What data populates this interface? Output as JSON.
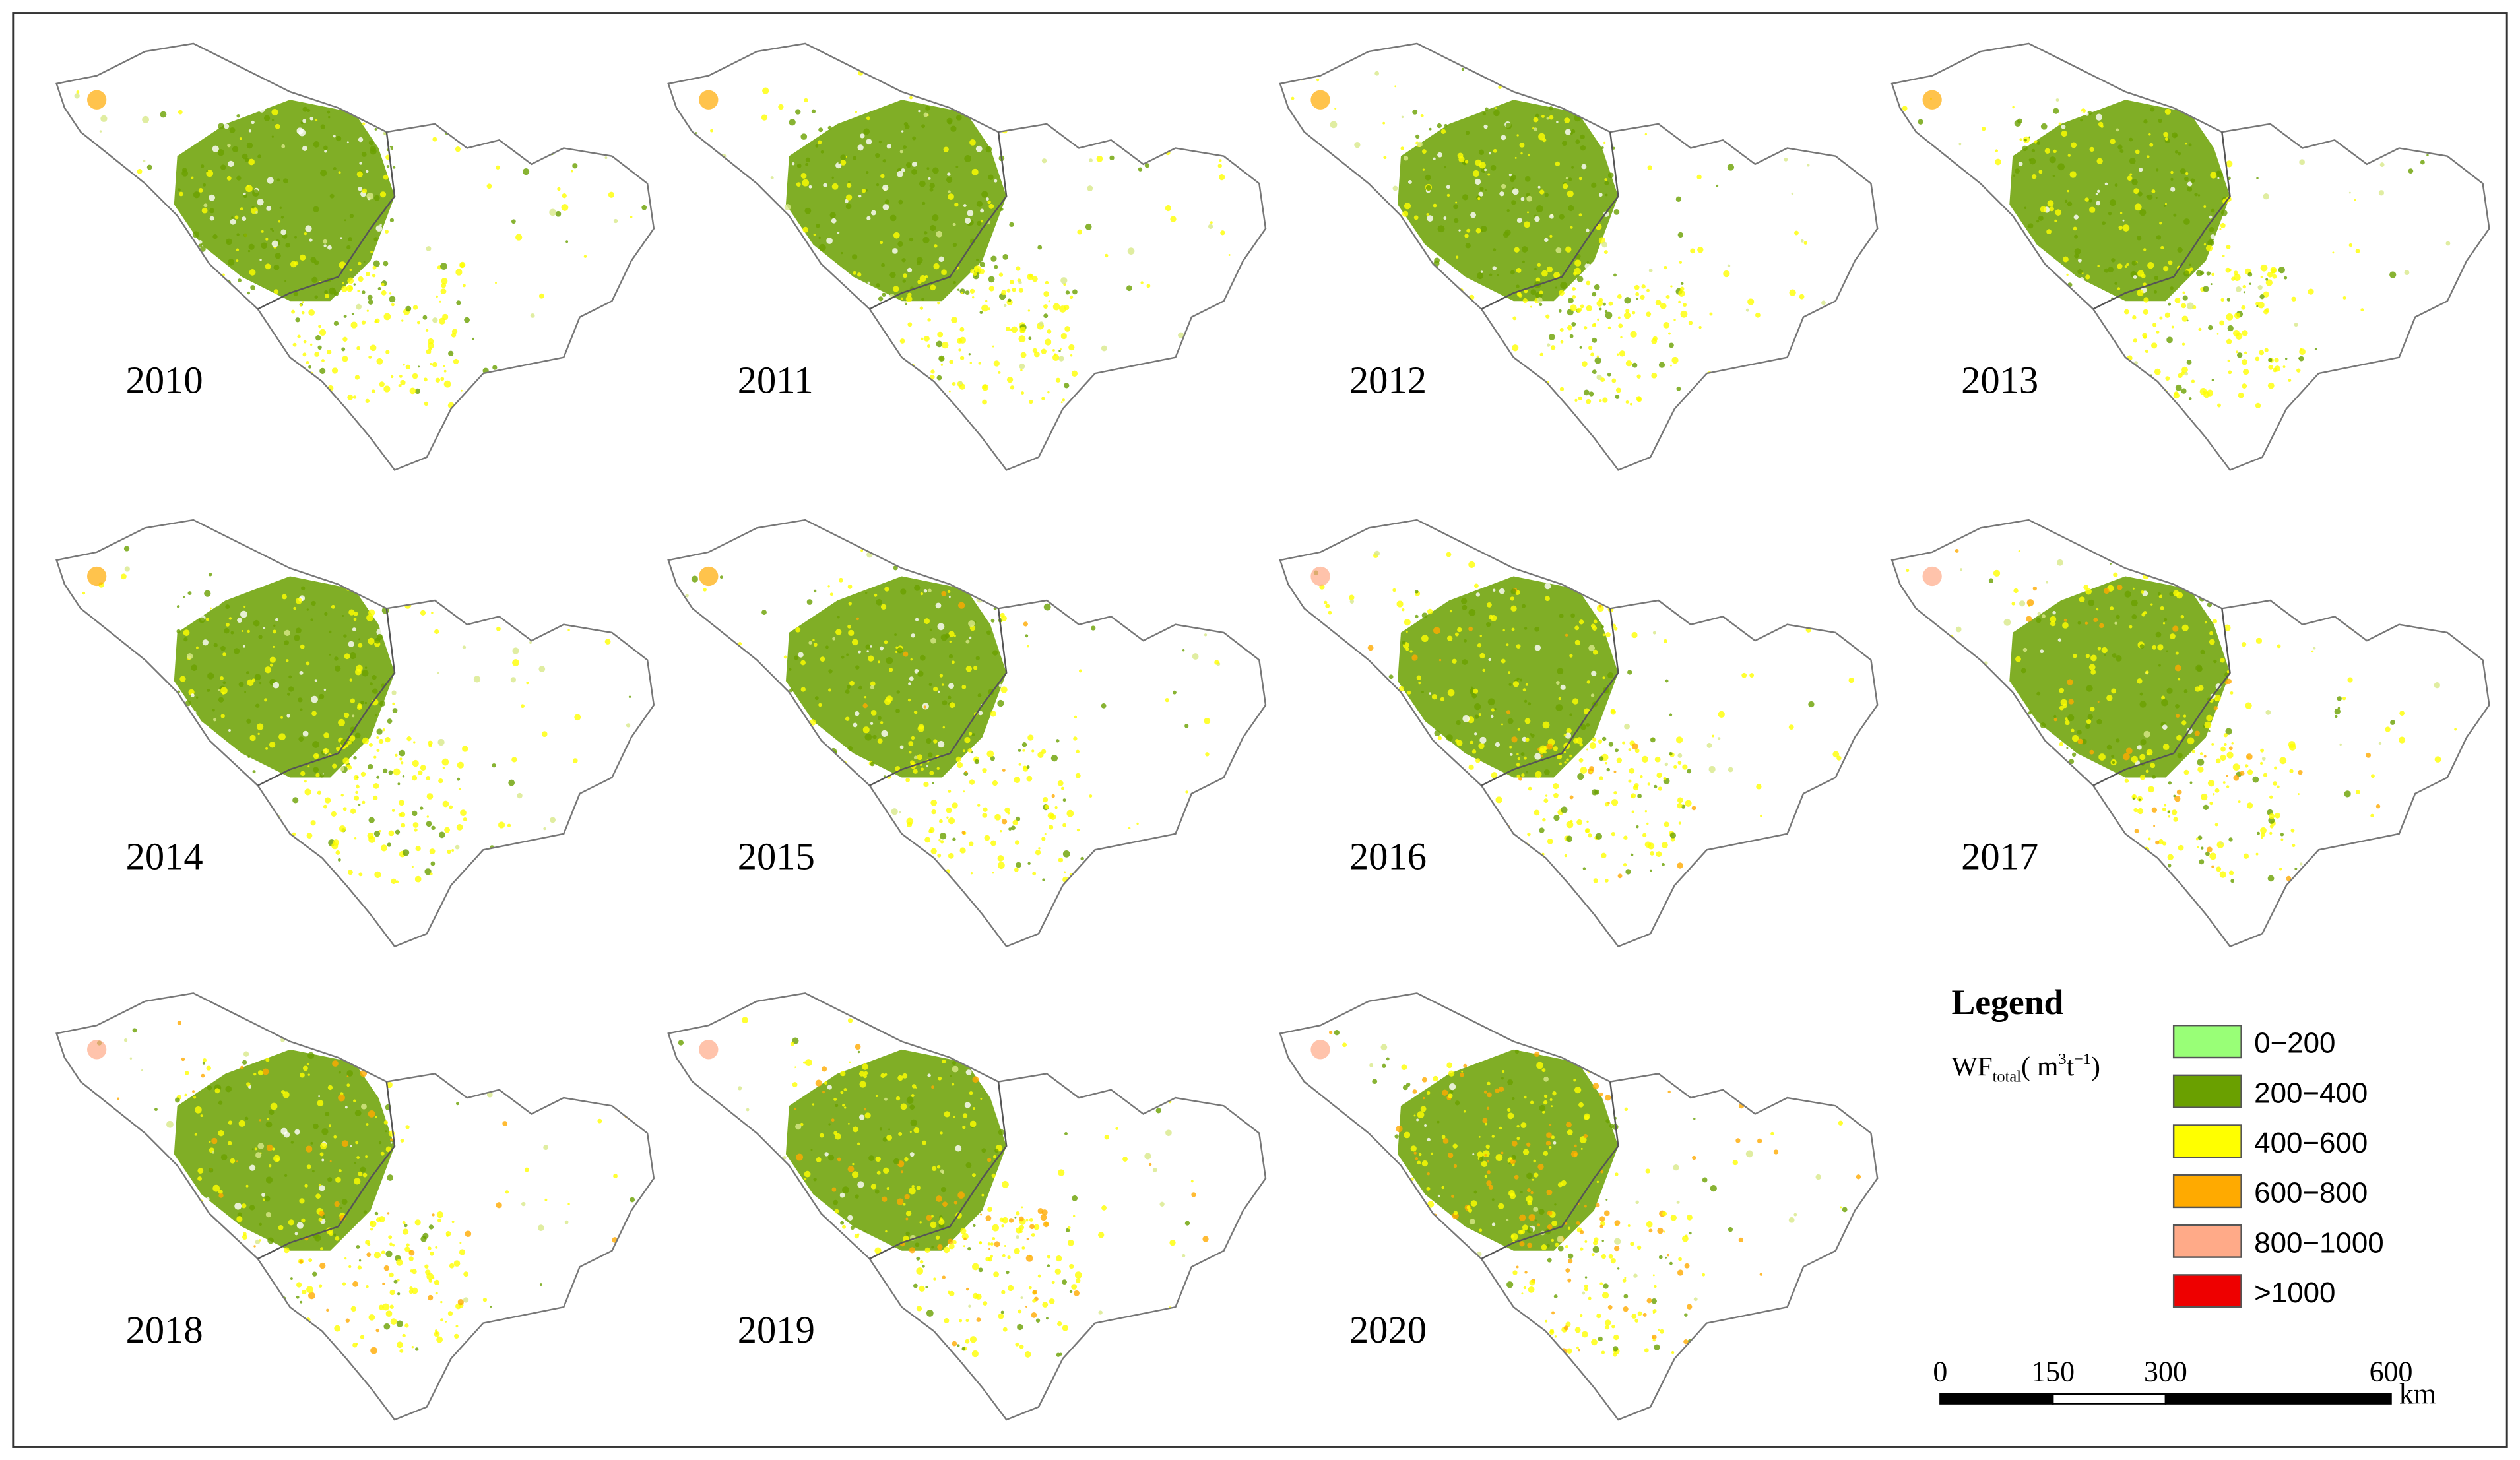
{
  "panels": [
    {
      "year": "2010"
    },
    {
      "year": "2011"
    },
    {
      "year": "2012"
    },
    {
      "year": "2013"
    },
    {
      "year": "2014"
    },
    {
      "year": "2015"
    },
    {
      "year": "2016"
    },
    {
      "year": "2017"
    },
    {
      "year": "2018"
    },
    {
      "year": "2019"
    },
    {
      "year": "2020"
    }
  ],
  "legend": {
    "title": "Legend",
    "variable": {
      "base": "WF",
      "subscript": "total",
      "unit_open": "( m",
      "unit_sup": "3",
      "unit_mid": "t",
      "unit_sup2": "−1",
      "unit_close": ")"
    },
    "items": [
      {
        "label": "0−200",
        "color": "#99ff77"
      },
      {
        "label": "200−400",
        "color": "#6aa000"
      },
      {
        "label": "400−600",
        "color": "#ffff00"
      },
      {
        "label": "600−800",
        "color": "#ffaa00"
      },
      {
        "label": "800−1000",
        "color": "#ffaa88"
      },
      {
        "label": ">1000",
        "color": "#ee0000"
      }
    ]
  },
  "scale_bar": {
    "ticks": [
      "0",
      "150",
      "300",
      "600"
    ],
    "unit": "km"
  }
}
